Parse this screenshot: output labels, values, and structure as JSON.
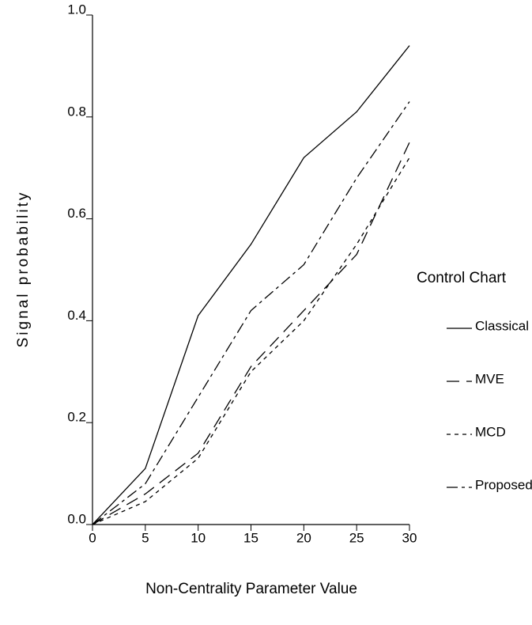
{
  "chart_data": {
    "type": "line",
    "x_label": "Non-Centrality Parameter Value",
    "y_label": "Signal probability",
    "legend_title": "Control Chart",
    "legend_position": "right",
    "x": [
      0,
      5,
      10,
      15,
      20,
      25,
      30
    ],
    "series": [
      {
        "name": "Classical",
        "color": "#000000",
        "dash": "none",
        "values": [
          0,
          0.11,
          0.41,
          0.55,
          0.72,
          0.81,
          0.94
        ]
      },
      {
        "name": "MVE",
        "color": "#000000",
        "dash": "16,9",
        "values": [
          0,
          0.06,
          0.14,
          0.31,
          0.42,
          0.53,
          0.75
        ]
      },
      {
        "name": "MCD",
        "color": "#000000",
        "dash": "5,5",
        "values": [
          0,
          0.045,
          0.13,
          0.3,
          0.4,
          0.55,
          0.72
        ]
      },
      {
        "name": "Proposed",
        "color": "#000000",
        "dash": "14,5,4,5",
        "values": [
          0,
          0.08,
          0.25,
          0.42,
          0.51,
          0.68,
          0.83
        ]
      }
    ],
    "xlim": [
      0,
      30
    ],
    "xticks": [
      0,
      5,
      10,
      15,
      20,
      25,
      30
    ],
    "ylim": [
      0,
      1
    ],
    "yticks": [
      {
        "value": 0,
        "label": "0.0"
      },
      0.2,
      0.4,
      0.6,
      0.8,
      {
        "value": 1,
        "label": "1.0"
      }
    ],
    "grid": false
  }
}
